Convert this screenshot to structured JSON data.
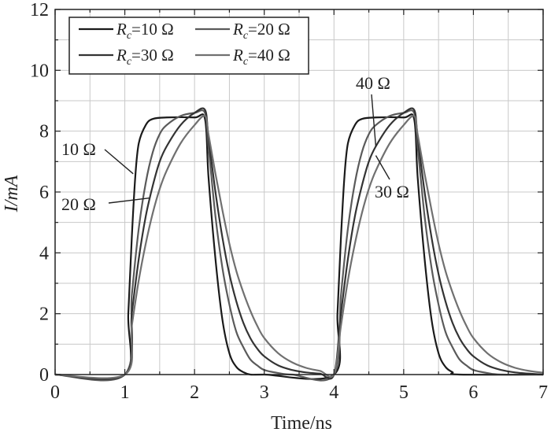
{
  "chart_data": {
    "type": "line",
    "title": "",
    "xlabel": "Time/ns",
    "ylabel": "I/mA",
    "xlim": [
      0,
      7
    ],
    "ylim": [
      0,
      12
    ],
    "xticks": [
      0,
      1,
      2,
      3,
      4,
      5,
      6,
      7
    ],
    "yticks": [
      0,
      2,
      4,
      6,
      8,
      10,
      12
    ],
    "grid": true,
    "legend_position": "top-left",
    "pulse_period_ns": 3,
    "series": [
      {
        "name": "Rc=10 Ω",
        "legend_symbol": "R",
        "legend_subscript": "c",
        "legend_value": "=10 Ω",
        "color": "#1a1a1a",
        "points": [
          [
            0.0,
            0.0
          ],
          [
            1.0,
            0.0
          ],
          [
            1.05,
            2.0
          ],
          [
            1.1,
            4.5
          ],
          [
            1.15,
            6.5
          ],
          [
            1.2,
            7.6
          ],
          [
            1.3,
            8.2
          ],
          [
            1.4,
            8.4
          ],
          [
            1.6,
            8.45
          ],
          [
            2.0,
            8.45
          ],
          [
            2.15,
            8.4
          ],
          [
            2.2,
            6.5
          ],
          [
            2.3,
            3.8
          ],
          [
            2.4,
            1.8
          ],
          [
            2.5,
            0.7
          ],
          [
            2.6,
            0.25
          ],
          [
            2.7,
            0.08
          ],
          [
            2.8,
            0.0
          ],
          [
            3.0,
            0.0
          ],
          [
            4.0,
            0.0
          ],
          [
            4.05,
            2.0
          ],
          [
            4.1,
            4.5
          ],
          [
            4.15,
            6.5
          ],
          [
            4.2,
            7.6
          ],
          [
            4.3,
            8.2
          ],
          [
            4.4,
            8.4
          ],
          [
            4.6,
            8.45
          ],
          [
            5.0,
            8.45
          ],
          [
            5.15,
            8.4
          ],
          [
            5.2,
            6.5
          ],
          [
            5.3,
            3.8
          ],
          [
            5.4,
            1.8
          ],
          [
            5.5,
            0.7
          ],
          [
            5.6,
            0.25
          ],
          [
            5.7,
            0.08
          ],
          [
            5.8,
            0.0
          ],
          [
            7.0,
            0.0
          ]
        ]
      },
      {
        "name": "Rc=20 Ω",
        "legend_symbol": "R",
        "legend_subscript": "c",
        "legend_value": "=20 Ω",
        "color": "#5a5a5a",
        "points": [
          [
            0.0,
            0.0
          ],
          [
            1.0,
            0.0
          ],
          [
            1.1,
            2.6
          ],
          [
            1.2,
            4.8
          ],
          [
            1.3,
            6.3
          ],
          [
            1.4,
            7.3
          ],
          [
            1.5,
            7.9
          ],
          [
            1.6,
            8.2
          ],
          [
            1.8,
            8.5
          ],
          [
            2.0,
            8.6
          ],
          [
            2.15,
            8.6
          ],
          [
            2.2,
            7.5
          ],
          [
            2.3,
            5.2
          ],
          [
            2.4,
            3.5
          ],
          [
            2.5,
            2.3
          ],
          [
            2.6,
            1.4
          ],
          [
            2.7,
            0.9
          ],
          [
            2.8,
            0.5
          ],
          [
            2.9,
            0.3
          ],
          [
            3.0,
            0.15
          ],
          [
            3.2,
            0.05
          ],
          [
            3.4,
            0.0
          ],
          [
            4.0,
            0.0
          ],
          [
            4.1,
            2.6
          ],
          [
            4.2,
            4.8
          ],
          [
            4.3,
            6.3
          ],
          [
            4.4,
            7.3
          ],
          [
            4.5,
            7.9
          ],
          [
            4.6,
            8.2
          ],
          [
            4.8,
            8.5
          ],
          [
            5.0,
            8.6
          ],
          [
            5.15,
            8.6
          ],
          [
            5.2,
            7.5
          ],
          [
            5.3,
            5.2
          ],
          [
            5.4,
            3.5
          ],
          [
            5.5,
            2.3
          ],
          [
            5.6,
            1.4
          ],
          [
            5.7,
            0.9
          ],
          [
            5.8,
            0.5
          ],
          [
            5.9,
            0.3
          ],
          [
            6.0,
            0.15
          ],
          [
            6.2,
            0.05
          ],
          [
            6.4,
            0.0
          ],
          [
            7.0,
            0.0
          ]
        ]
      },
      {
        "name": "Rc=30 Ω",
        "legend_symbol": "R",
        "legend_subscript": "c",
        "legend_value": "=30 Ω",
        "color": "#333333",
        "points": [
          [
            0.0,
            0.0
          ],
          [
            1.0,
            0.0
          ],
          [
            1.1,
            2.0
          ],
          [
            1.2,
            3.8
          ],
          [
            1.3,
            5.2
          ],
          [
            1.4,
            6.2
          ],
          [
            1.5,
            7.0
          ],
          [
            1.6,
            7.5
          ],
          [
            1.8,
            8.2
          ],
          [
            2.0,
            8.6
          ],
          [
            2.15,
            8.7
          ],
          [
            2.2,
            7.8
          ],
          [
            2.3,
            6.0
          ],
          [
            2.4,
            4.5
          ],
          [
            2.5,
            3.3
          ],
          [
            2.6,
            2.4
          ],
          [
            2.7,
            1.7
          ],
          [
            2.8,
            1.2
          ],
          [
            2.9,
            0.85
          ],
          [
            3.0,
            0.6
          ],
          [
            3.2,
            0.3
          ],
          [
            3.4,
            0.15
          ],
          [
            3.6,
            0.07
          ],
          [
            3.8,
            0.03
          ],
          [
            4.0,
            0.0
          ],
          [
            4.1,
            2.0
          ],
          [
            4.2,
            3.8
          ],
          [
            4.3,
            5.2
          ],
          [
            4.4,
            6.2
          ],
          [
            4.5,
            7.0
          ],
          [
            4.6,
            7.5
          ],
          [
            4.8,
            8.2
          ],
          [
            5.0,
            8.6
          ],
          [
            5.15,
            8.7
          ],
          [
            5.2,
            7.8
          ],
          [
            5.3,
            6.0
          ],
          [
            5.4,
            4.5
          ],
          [
            5.5,
            3.3
          ],
          [
            5.6,
            2.4
          ],
          [
            5.7,
            1.7
          ],
          [
            5.8,
            1.2
          ],
          [
            5.9,
            0.85
          ],
          [
            6.0,
            0.6
          ],
          [
            6.2,
            0.3
          ],
          [
            6.4,
            0.15
          ],
          [
            6.6,
            0.07
          ],
          [
            6.8,
            0.03
          ],
          [
            7.0,
            0.0
          ]
        ]
      },
      {
        "name": "Rc=40 Ω",
        "legend_symbol": "R",
        "legend_subscript": "c",
        "legend_value": "=40 Ω",
        "color": "#707070",
        "points": [
          [
            0.0,
            0.0
          ],
          [
            1.0,
            0.0
          ],
          [
            1.1,
            1.6
          ],
          [
            1.2,
            3.1
          ],
          [
            1.3,
            4.3
          ],
          [
            1.4,
            5.3
          ],
          [
            1.5,
            6.1
          ],
          [
            1.6,
            6.7
          ],
          [
            1.8,
            7.6
          ],
          [
            2.0,
            8.2
          ],
          [
            2.15,
            8.5
          ],
          [
            2.2,
            7.9
          ],
          [
            2.3,
            6.6
          ],
          [
            2.4,
            5.4
          ],
          [
            2.5,
            4.3
          ],
          [
            2.6,
            3.4
          ],
          [
            2.7,
            2.7
          ],
          [
            2.8,
            2.1
          ],
          [
            2.9,
            1.6
          ],
          [
            3.0,
            1.2
          ],
          [
            3.2,
            0.7
          ],
          [
            3.4,
            0.4
          ],
          [
            3.6,
            0.22
          ],
          [
            3.8,
            0.12
          ],
          [
            4.0,
            0.02
          ],
          [
            4.1,
            1.6
          ],
          [
            4.2,
            3.1
          ],
          [
            4.3,
            4.3
          ],
          [
            4.4,
            5.3
          ],
          [
            4.5,
            6.1
          ],
          [
            4.6,
            6.7
          ],
          [
            4.8,
            7.6
          ],
          [
            5.0,
            8.2
          ],
          [
            5.15,
            8.5
          ],
          [
            5.2,
            7.9
          ],
          [
            5.3,
            6.6
          ],
          [
            5.4,
            5.4
          ],
          [
            5.5,
            4.3
          ],
          [
            5.6,
            3.4
          ],
          [
            5.7,
            2.7
          ],
          [
            5.8,
            2.1
          ],
          [
            5.9,
            1.6
          ],
          [
            6.0,
            1.2
          ],
          [
            6.2,
            0.7
          ],
          [
            6.4,
            0.4
          ],
          [
            6.6,
            0.22
          ],
          [
            6.8,
            0.12
          ],
          [
            7.0,
            0.06
          ]
        ]
      }
    ],
    "annotations": [
      {
        "text": "10 Ω",
        "target": [
          1.12,
          6.6
        ]
      },
      {
        "text": "20 Ω",
        "target": [
          1.35,
          5.8
        ]
      },
      {
        "text": "40 Ω",
        "target": [
          4.6,
          7.5
        ]
      },
      {
        "text": "30 Ω",
        "target": [
          4.6,
          7.2
        ]
      }
    ]
  }
}
